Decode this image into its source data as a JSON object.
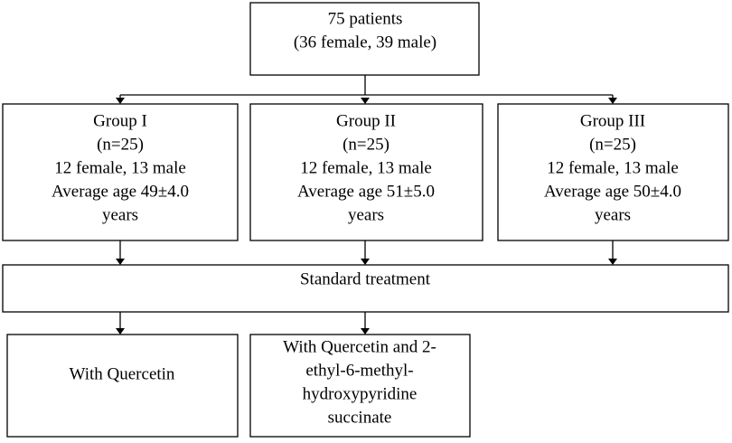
{
  "nodes": [
    {
      "lines": [
        "75 patients",
        "(36 female, 39 male)"
      ]
    },
    {
      "lines": [
        "Group I",
        "(n=25)",
        "12 female, 13 male",
        "Average age 49±4.0",
        "years"
      ]
    },
    {
      "lines": [
        "Group II",
        "(n=25)",
        "12 female, 13 male",
        "Average age 51±5.0",
        "years"
      ]
    },
    {
      "lines": [
        "Group III",
        "(n=25)",
        "12 female, 13 male",
        "Average age 50±4.0",
        "years"
      ]
    },
    {
      "lines": [
        "Standard treatment"
      ]
    },
    {
      "lines": [
        "With Quercetin"
      ]
    },
    {
      "lines": [
        "With Quercetin and 2-",
        "ethyl-6-methyl-",
        "hydroxypyridine",
        "succinate"
      ]
    }
  ]
}
